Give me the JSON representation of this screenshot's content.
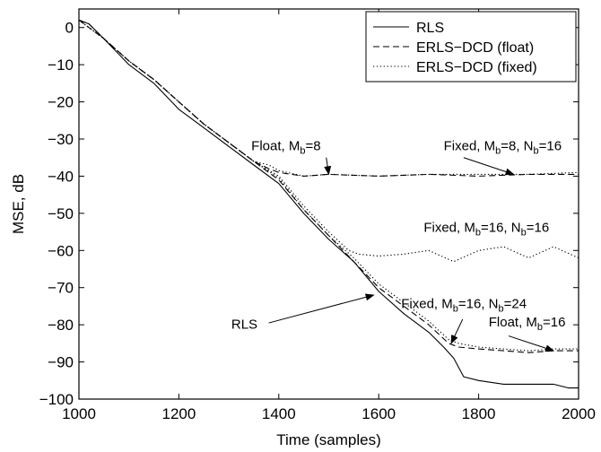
{
  "chart_data": {
    "type": "line",
    "xlabel": "Time (samples)",
    "ylabel": "MSE, dB",
    "xlim": [
      1000,
      2000
    ],
    "ylim": [
      -100,
      5
    ],
    "xticks": [
      1000,
      1200,
      1400,
      1600,
      1800,
      2000
    ],
    "yticks": [
      0,
      -10,
      -20,
      -30,
      -40,
      -50,
      -60,
      -70,
      -80,
      -90,
      -100
    ],
    "grid": false,
    "legend": {
      "placement": "top-right",
      "entries": [
        {
          "label": "RLS",
          "style": "solid"
        },
        {
          "label": "ERLS−DCD (float)",
          "style": "dashed"
        },
        {
          "label": "ERLS−DCD (fixed)",
          "style": "dotted"
        }
      ]
    },
    "series": [
      {
        "name": "RLS",
        "style": "solid",
        "x": [
          1000,
          1020,
          1050,
          1100,
          1150,
          1200,
          1250,
          1300,
          1350,
          1400,
          1450,
          1500,
          1550,
          1600,
          1650,
          1700,
          1730,
          1750,
          1770,
          1800,
          1850,
          1900,
          1950,
          1980,
          2000
        ],
        "y": [
          2,
          1,
          -3,
          -10,
          -15,
          -22,
          -27,
          -32,
          -37,
          -42,
          -50,
          -57,
          -63,
          -71,
          -77,
          -82,
          -86,
          -89,
          -94,
          -95,
          -96,
          -96,
          -96,
          -97,
          -97
        ]
      },
      {
        "name": "ERLS−DCD (float)",
        "style": "dashed",
        "x": [
          1000,
          1020,
          1050,
          1100,
          1150,
          1200,
          1250,
          1300,
          1350,
          1380,
          1400,
          1450,
          1500,
          1600,
          1700,
          1800,
          1900,
          2000
        ],
        "y": [
          2,
          1,
          -3,
          -9,
          -14,
          -20,
          -26,
          -31,
          -36,
          -38,
          -39,
          -40,
          -39.5,
          -40,
          -39.5,
          -40,
          -39.5,
          -39.5
        ]
      },
      {
        "name": "ERLS−DCD (float)",
        "style": "dashed",
        "x": [
          1000,
          1050,
          1100,
          1150,
          1200,
          1250,
          1300,
          1350,
          1400,
          1450,
          1500,
          1550,
          1600,
          1650,
          1700,
          1740,
          1760,
          1800,
          1850,
          1900,
          1950,
          2000
        ],
        "y": [
          2,
          -3,
          -9,
          -14,
          -20,
          -26,
          -31,
          -36,
          -41,
          -49,
          -56,
          -63,
          -70,
          -75,
          -80,
          -85,
          -86,
          -86.5,
          -87,
          -87.5,
          -87,
          -87
        ]
      },
      {
        "name": "ERLS−DCD (fixed)",
        "style": "dotted",
        "x": [
          1000,
          1050,
          1100,
          1150,
          1200,
          1250,
          1300,
          1350,
          1380,
          1400,
          1450,
          1500,
          1600,
          1700,
          1800,
          1900,
          2000
        ],
        "y": [
          2,
          -3,
          -9,
          -14,
          -20,
          -26,
          -31,
          -36,
          -37,
          -38.5,
          -40,
          -39.5,
          -40,
          -39.5,
          -39.5,
          -39.5,
          -39
        ]
      },
      {
        "name": "ERLS−DCD (fixed)",
        "style": "dotted",
        "x": [
          1000,
          1050,
          1100,
          1150,
          1200,
          1250,
          1300,
          1350,
          1400,
          1450,
          1500,
          1540,
          1560,
          1600,
          1650,
          1700,
          1750,
          1800,
          1850,
          1900,
          1950,
          2000
        ],
        "y": [
          2,
          -3,
          -9,
          -14,
          -20,
          -26,
          -31,
          -36,
          -40,
          -48,
          -55,
          -60,
          -61,
          -61.5,
          -61,
          -60,
          -63,
          -60,
          -59,
          -62,
          -59,
          -62
        ]
      },
      {
        "name": "ERLS−DCD (fixed)",
        "style": "dotted",
        "x": [
          1000,
          1050,
          1100,
          1150,
          1200,
          1250,
          1300,
          1350,
          1400,
          1450,
          1500,
          1550,
          1600,
          1650,
          1700,
          1740,
          1760,
          1800,
          1850,
          1900,
          1950,
          2000
        ],
        "y": [
          2,
          -3,
          -9,
          -14,
          -20,
          -26,
          -31,
          -36,
          -40.5,
          -49,
          -56,
          -62,
          -69,
          -74,
          -79,
          -84,
          -85,
          -86,
          -86.5,
          -87,
          -86.5,
          -86.5
        ]
      }
    ],
    "annotations": [
      {
        "text": "Float, M",
        "sub": "b",
        "tail": "=8",
        "text_x": 1345,
        "text_y": -33,
        "arrow_from": [
          1495,
          -35
        ],
        "arrow_to": [
          1500,
          -39.5
        ]
      },
      {
        "text": "Fixed, M",
        "sub": "b",
        "tail": "=8, N",
        "sub2": "b",
        "tail2": "=16",
        "text_x": 1730,
        "text_y": -33,
        "arrow_from": [
          1770,
          -35
        ],
        "arrow_to": [
          1870,
          -39.5
        ]
      },
      {
        "text": "Fixed, M",
        "sub": "b",
        "tail": "=16, N",
        "sub2": "b",
        "tail2": "=16",
        "text_x": 1690,
        "text_y": -55,
        "arrow_from": null,
        "arrow_to": null
      },
      {
        "text": "Fixed, M",
        "sub": "b",
        "tail": "=16, N",
        "sub2": "b",
        "tail2": "=24",
        "text_x": 1645,
        "text_y": -75.5,
        "arrow_from": [
          1768,
          -78.5
        ],
        "arrow_to": [
          1745,
          -85
        ]
      },
      {
        "text": "Float, M",
        "sub": "b",
        "tail": "=16",
        "text_x": 1820,
        "text_y": -80.5,
        "arrow_from": [
          1860,
          -83
        ],
        "arrow_to": [
          1950,
          -87
        ]
      },
      {
        "text": "RLS",
        "sub": "",
        "tail": "",
        "text_x": 1305,
        "text_y": -81,
        "arrow_from": [
          1380,
          -79.5
        ],
        "arrow_to": [
          1590,
          -72
        ]
      }
    ]
  }
}
